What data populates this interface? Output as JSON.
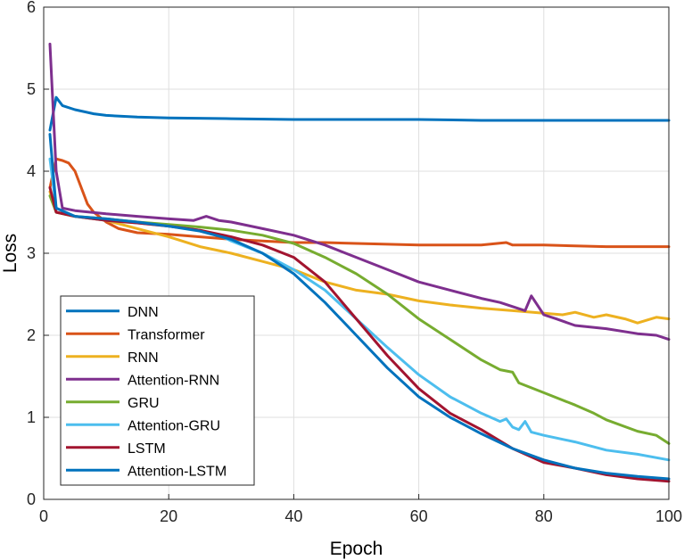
{
  "chart_data": {
    "type": "line",
    "title": "",
    "xlabel": "Epoch",
    "ylabel": "Loss",
    "xlim": [
      0,
      100
    ],
    "ylim": [
      0,
      6
    ],
    "xticks": [
      "0",
      "20",
      "40",
      "60",
      "80",
      "100"
    ],
    "yticks": [
      "0",
      "1",
      "2",
      "3",
      "4",
      "5",
      "6"
    ],
    "grid": true,
    "legend_position": "bottom-left",
    "series": [
      {
        "name": "DNN",
        "color": "#0072BD",
        "points": [
          [
            1,
            4.5
          ],
          [
            2,
            4.9
          ],
          [
            3,
            4.8
          ],
          [
            5,
            4.75
          ],
          [
            8,
            4.7
          ],
          [
            10,
            4.68
          ],
          [
            15,
            4.66
          ],
          [
            20,
            4.65
          ],
          [
            30,
            4.64
          ],
          [
            40,
            4.63
          ],
          [
            50,
            4.63
          ],
          [
            60,
            4.63
          ],
          [
            70,
            4.62
          ],
          [
            80,
            4.62
          ],
          [
            90,
            4.62
          ],
          [
            100,
            4.62
          ]
        ]
      },
      {
        "name": "Transformer",
        "color": "#D95319",
        "points": [
          [
            1,
            3.8
          ],
          [
            2,
            4.15
          ],
          [
            3,
            4.13
          ],
          [
            4,
            4.1
          ],
          [
            5,
            4.0
          ],
          [
            6,
            3.8
          ],
          [
            7,
            3.6
          ],
          [
            8,
            3.5
          ],
          [
            10,
            3.38
          ],
          [
            12,
            3.3
          ],
          [
            15,
            3.25
          ],
          [
            20,
            3.23
          ],
          [
            25,
            3.2
          ],
          [
            30,
            3.17
          ],
          [
            35,
            3.15
          ],
          [
            40,
            3.13
          ],
          [
            45,
            3.13
          ],
          [
            50,
            3.12
          ],
          [
            55,
            3.11
          ],
          [
            60,
            3.1
          ],
          [
            65,
            3.1
          ],
          [
            70,
            3.1
          ],
          [
            74,
            3.13
          ],
          [
            75,
            3.1
          ],
          [
            80,
            3.1
          ],
          [
            85,
            3.09
          ],
          [
            90,
            3.08
          ],
          [
            95,
            3.08
          ],
          [
            100,
            3.08
          ]
        ]
      },
      {
        "name": "RNN",
        "color": "#EDB120",
        "points": [
          [
            1,
            3.75
          ],
          [
            2,
            3.5
          ],
          [
            5,
            3.45
          ],
          [
            10,
            3.4
          ],
          [
            15,
            3.3
          ],
          [
            20,
            3.2
          ],
          [
            25,
            3.08
          ],
          [
            30,
            3.0
          ],
          [
            35,
            2.9
          ],
          [
            40,
            2.8
          ],
          [
            45,
            2.65
          ],
          [
            50,
            2.55
          ],
          [
            55,
            2.5
          ],
          [
            60,
            2.42
          ],
          [
            65,
            2.37
          ],
          [
            70,
            2.33
          ],
          [
            75,
            2.3
          ],
          [
            80,
            2.27
          ],
          [
            83,
            2.25
          ],
          [
            85,
            2.28
          ],
          [
            88,
            2.22
          ],
          [
            90,
            2.25
          ],
          [
            93,
            2.2
          ],
          [
            95,
            2.15
          ],
          [
            98,
            2.22
          ],
          [
            100,
            2.2
          ]
        ]
      },
      {
        "name": "Attention-RNN",
        "color": "#7E2F8E",
        "points": [
          [
            1,
            5.55
          ],
          [
            2,
            4.0
          ],
          [
            3,
            3.55
          ],
          [
            5,
            3.52
          ],
          [
            10,
            3.48
          ],
          [
            15,
            3.45
          ],
          [
            20,
            3.42
          ],
          [
            24,
            3.4
          ],
          [
            26,
            3.45
          ],
          [
            28,
            3.4
          ],
          [
            30,
            3.38
          ],
          [
            35,
            3.3
          ],
          [
            40,
            3.22
          ],
          [
            45,
            3.1
          ],
          [
            50,
            2.95
          ],
          [
            55,
            2.8
          ],
          [
            60,
            2.65
          ],
          [
            65,
            2.55
          ],
          [
            70,
            2.45
          ],
          [
            73,
            2.4
          ],
          [
            75,
            2.35
          ],
          [
            77,
            2.3
          ],
          [
            78,
            2.48
          ],
          [
            80,
            2.25
          ],
          [
            82,
            2.2
          ],
          [
            85,
            2.12
          ],
          [
            90,
            2.08
          ],
          [
            95,
            2.02
          ],
          [
            98,
            2.0
          ],
          [
            100,
            1.95
          ]
        ]
      },
      {
        "name": "GRU",
        "color": "#77AC30",
        "points": [
          [
            1,
            3.7
          ],
          [
            2,
            3.5
          ],
          [
            5,
            3.45
          ],
          [
            10,
            3.42
          ],
          [
            15,
            3.38
          ],
          [
            20,
            3.35
          ],
          [
            25,
            3.32
          ],
          [
            30,
            3.28
          ],
          [
            35,
            3.22
          ],
          [
            40,
            3.12
          ],
          [
            45,
            2.95
          ],
          [
            50,
            2.75
          ],
          [
            55,
            2.5
          ],
          [
            60,
            2.2
          ],
          [
            65,
            1.95
          ],
          [
            70,
            1.7
          ],
          [
            73,
            1.58
          ],
          [
            75,
            1.55
          ],
          [
            76,
            1.42
          ],
          [
            80,
            1.3
          ],
          [
            85,
            1.15
          ],
          [
            88,
            1.05
          ],
          [
            90,
            0.97
          ],
          [
            95,
            0.83
          ],
          [
            98,
            0.78
          ],
          [
            100,
            0.68
          ]
        ]
      },
      {
        "name": "Attention-GRU",
        "color": "#4DBEEE",
        "points": [
          [
            1,
            4.15
          ],
          [
            2,
            3.55
          ],
          [
            5,
            3.45
          ],
          [
            10,
            3.4
          ],
          [
            15,
            3.37
          ],
          [
            20,
            3.33
          ],
          [
            25,
            3.28
          ],
          [
            28,
            3.22
          ],
          [
            30,
            3.15
          ],
          [
            35,
            3.0
          ],
          [
            40,
            2.8
          ],
          [
            45,
            2.55
          ],
          [
            50,
            2.2
          ],
          [
            55,
            1.85
          ],
          [
            60,
            1.52
          ],
          [
            65,
            1.25
          ],
          [
            70,
            1.05
          ],
          [
            73,
            0.95
          ],
          [
            74,
            0.98
          ],
          [
            75,
            0.88
          ],
          [
            76,
            0.85
          ],
          [
            77,
            0.95
          ],
          [
            78,
            0.82
          ],
          [
            80,
            0.78
          ],
          [
            85,
            0.7
          ],
          [
            90,
            0.6
          ],
          [
            95,
            0.55
          ],
          [
            100,
            0.48
          ]
        ]
      },
      {
        "name": "LSTM",
        "color": "#A2142F",
        "points": [
          [
            1,
            3.8
          ],
          [
            2,
            3.5
          ],
          [
            5,
            3.45
          ],
          [
            10,
            3.4
          ],
          [
            15,
            3.37
          ],
          [
            20,
            3.33
          ],
          [
            25,
            3.28
          ],
          [
            30,
            3.2
          ],
          [
            35,
            3.1
          ],
          [
            40,
            2.95
          ],
          [
            45,
            2.65
          ],
          [
            50,
            2.2
          ],
          [
            55,
            1.75
          ],
          [
            60,
            1.35
          ],
          [
            65,
            1.05
          ],
          [
            70,
            0.85
          ],
          [
            75,
            0.62
          ],
          [
            80,
            0.45
          ],
          [
            85,
            0.38
          ],
          [
            90,
            0.3
          ],
          [
            95,
            0.25
          ],
          [
            100,
            0.22
          ]
        ]
      },
      {
        "name": "Attention-LSTM",
        "color": "#0072BD",
        "points": [
          [
            1,
            4.45
          ],
          [
            2,
            3.55
          ],
          [
            5,
            3.45
          ],
          [
            10,
            3.42
          ],
          [
            15,
            3.38
          ],
          [
            20,
            3.33
          ],
          [
            25,
            3.27
          ],
          [
            30,
            3.17
          ],
          [
            35,
            3.0
          ],
          [
            40,
            2.75
          ],
          [
            45,
            2.4
          ],
          [
            50,
            2.0
          ],
          [
            55,
            1.6
          ],
          [
            60,
            1.25
          ],
          [
            65,
            1.0
          ],
          [
            70,
            0.8
          ],
          [
            75,
            0.62
          ],
          [
            80,
            0.48
          ],
          [
            85,
            0.38
          ],
          [
            90,
            0.32
          ],
          [
            95,
            0.28
          ],
          [
            100,
            0.25
          ]
        ]
      }
    ]
  }
}
